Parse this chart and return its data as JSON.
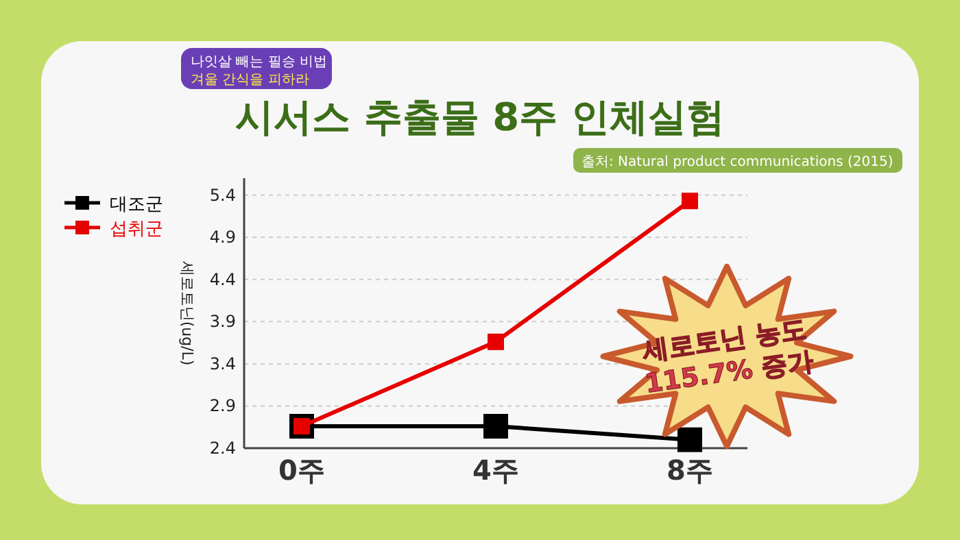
{
  "chart_data": {
    "type": "line",
    "title": "시서스 추출물 8주 인체실험",
    "ylabel": "세로토닌(ug/L)",
    "categories": [
      "0주",
      "4주",
      "8주"
    ],
    "series": [
      {
        "name": "대조군",
        "color": "#000000",
        "values": [
          2.66,
          2.66,
          2.5
        ]
      },
      {
        "name": "섭취군",
        "color": "#e60000",
        "values": [
          2.66,
          3.66,
          5.33
        ]
      }
    ],
    "ylim": [
      2.4,
      5.6
    ],
    "yticks": [
      2.4,
      2.9,
      3.4,
      3.9,
      4.4,
      4.9,
      5.4
    ],
    "grid": "y",
    "legend": "left",
    "marker": "square",
    "line_style": "solid",
    "annotations": [
      "나잇살 빼는 필승 비법",
      "겨울 간식을 피하라",
      "출처: Natural product communications (2015)",
      "세로토닌 농도",
      "115.7% 증가"
    ]
  }
}
